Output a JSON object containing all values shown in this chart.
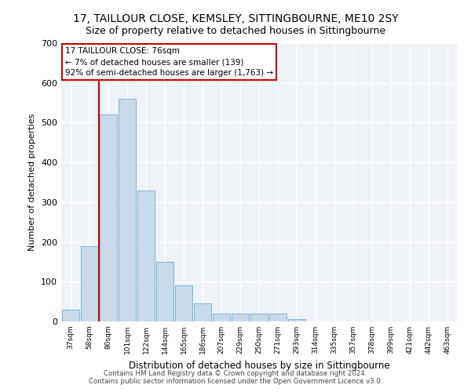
{
  "title1": "17, TAILLOUR CLOSE, KEMSLEY, SITTINGBOURNE, ME10 2SY",
  "title2": "Size of property relative to detached houses in Sittingbourne",
  "xlabel": "Distribution of detached houses by size in Sittingbourne",
  "ylabel": "Number of detached properties",
  "categories": [
    "37sqm",
    "58sqm",
    "80sqm",
    "101sqm",
    "122sqm",
    "144sqm",
    "165sqm",
    "186sqm",
    "207sqm",
    "229sqm",
    "250sqm",
    "271sqm",
    "293sqm",
    "314sqm",
    "335sqm",
    "357sqm",
    "378sqm",
    "399sqm",
    "421sqm",
    "442sqm",
    "463sqm"
  ],
  "values": [
    30,
    190,
    520,
    560,
    330,
    150,
    90,
    45,
    20,
    20,
    20,
    20,
    5,
    0,
    0,
    0,
    0,
    0,
    0,
    0,
    0
  ],
  "bar_color": "#c9daea",
  "bar_edge_color": "#6aafd6",
  "vline_color": "#cc0000",
  "annotation_text": "17 TAILLOUR CLOSE: 76sqm\n← 7% of detached houses are smaller (139)\n92% of semi-detached houses are larger (1,763) →",
  "annotation_box_color": "#ffffff",
  "annotation_box_edge": "#cc0000",
  "ylim": [
    0,
    700
  ],
  "yticks": [
    0,
    100,
    200,
    300,
    400,
    500,
    600,
    700
  ],
  "footer1": "Contains HM Land Registry data © Crown copyright and database right 2024.",
  "footer2": "Contains public sector information licensed under the Open Government Licence v3.0.",
  "bg_color": "#eef2f7",
  "title1_fontsize": 10,
  "title2_fontsize": 9,
  "vline_xindex": 2
}
